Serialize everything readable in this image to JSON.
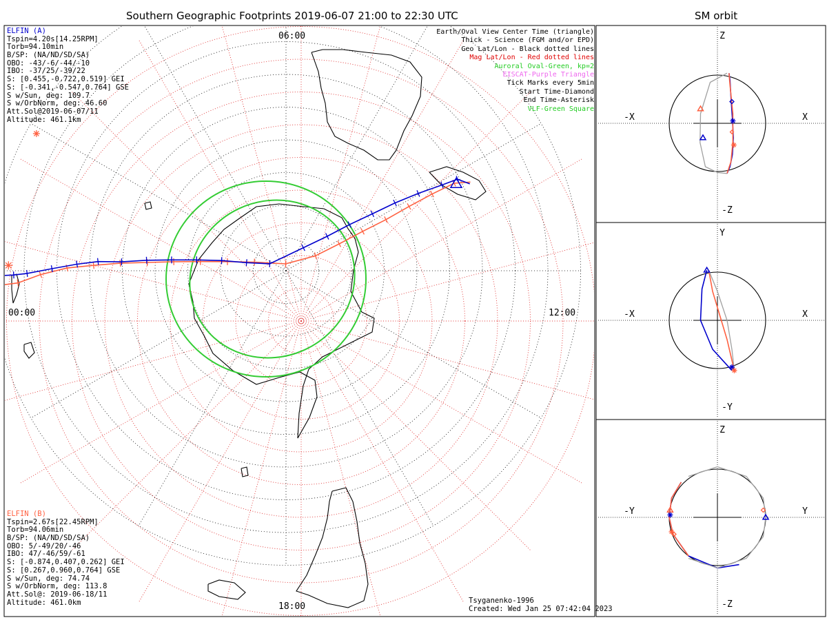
{
  "title": "Southern Geographic Footprints 2019-06-07 21:00 to 22:30 UTC",
  "orbit_title": "SM orbit",
  "elfin_a": {
    "name": "ELFIN (A)",
    "lines": [
      "Tspin=4.20s[14.25RPM]",
      "Torb=94.10min",
      "B/SP: (NA/ND/SD/SA)",
      "OBO: -43/-6/-44/-10",
      "IBO: -37/25/-39/22",
      "S: [0.455,-0.722,0.519] GEI",
      "S: [-0.341,-0.547,0.764] GSE",
      "S w/Sun, deg: 109.7",
      "S w/OrbNorm, deg: 46.60",
      "Att.Sol@2019-06-07/11",
      "Altitude: 461.1km"
    ]
  },
  "elfin_b": {
    "name": "ELFIN (B)",
    "lines": [
      "Tspin=2.67s[22.45RPM]",
      "Torb=94.06min",
      "B/SP: (NA/ND/SD/SA)",
      "OBO: 5/-49/20/-46",
      "IBO: 47/-46/59/-61",
      "S: [-0.874,0.407,0.262] GEI",
      "S: [0.267,0.960,0.764] GSE",
      "S w/Sun, deg: 74.74",
      "S w/OrbNorm, deg: 113.8",
      "Att.Sol@: 2019-06-18/11",
      "Altitude: 461.0km"
    ]
  },
  "legend": [
    {
      "text": "Earth/Oval View Center Time (triangle)",
      "color": "#000000"
    },
    {
      "text": "Thick - Science (FGM and/or EPD)",
      "color": "#000000"
    },
    {
      "text": "Geo Lat/Lon - Black dotted lines",
      "color": "#000000"
    },
    {
      "text": "Mag Lat/Lon - Red dotted lines",
      "color": "#e00000"
    },
    {
      "text": "Auroral Oval-Green, kp=2",
      "color": "#22cc22"
    },
    {
      "text": "EISCAT-Purple Triangle",
      "color": "#ee66ee"
    },
    {
      "text": "Tick Marks every 5min",
      "color": "#000000"
    },
    {
      "text": "Start Time-Diamond",
      "color": "#000000"
    },
    {
      "text": "End Time-Asterisk",
      "color": "#000000"
    },
    {
      "text": "VLF-Green Square",
      "color": "#22cc22"
    }
  ],
  "mlt_labels": {
    "top": "06:00",
    "left": "00:00",
    "right": "12:00",
    "bottom": "18:00"
  },
  "credit": "Tsyganenko-1996",
  "created": "Created: Wed Jan 25 07:42:04 2023",
  "colors": {
    "elfin_a": "#0000cc",
    "elfin_b": "#ff6040",
    "oval": "#33cc33",
    "grid_mag": "#e03030",
    "grid_geo": "#000000",
    "orbit_ref": "#a0a0a0"
  },
  "chart_data": [
    {
      "type": "line",
      "name": "footprints",
      "title": "Southern Geographic Footprints 2019-06-07 21:00 to 22:30 UTC",
      "projection": "south polar azimuthal",
      "series": [
        {
          "name": "ELFIN (A)",
          "color": "#0000cc",
          "lat": [
            -2.7,
            -6.8,
            -10.9,
            -18.5,
            -26.1,
            -32.5,
            -39.7,
            -47.3,
            -54.9,
            -62.5,
            -70.1,
            -77.7,
            -84.6,
            -81.2,
            -73.6,
            -66.0,
            -58.4,
            -50.8,
            -43.2,
            -35.6,
            -30.6,
            -27.9
          ],
          "lon": [
            -91.0,
            -90.9,
            -90.6,
            -89.5,
            -88.2,
            -87.2,
            -86.9,
            -85.7,
            -84.6,
            -83.1,
            -81.0,
            -78.4,
            -66.8,
            37.0,
            50.1,
            54.0,
            56.6,
            58.1,
            59.7,
            61.2,
            61.9,
            64.7
          ]
        },
        {
          "name": "ELFIN (B)",
          "color": "#ff6040",
          "lat": [
            -2.7,
            -8.0,
            -15.0,
            -23.1,
            -31.2,
            -39.3,
            -47.5,
            -55.6,
            -63.7,
            -71.9,
            -80.0,
            -87.9,
            -79.9,
            -71.8,
            -63.7,
            -55.7,
            -47.6,
            -39.6,
            -32.1,
            -27.5
          ],
          "lon": [
            -92.9,
            -92.6,
            -90.9,
            -89.3,
            -88.4,
            -87.4,
            -86.6,
            -85.4,
            -83.9,
            -81.2,
            -74.8,
            -3.0,
            63.1,
            63.2,
            62.8,
            62.9,
            62.4,
            62.3,
            62.5,
            64.3
          ]
        }
      ],
      "markers": {
        "elfin_a": {
          "view_center_triangle": [
            -31.6,
            62.9
          ],
          "start_diamond": [
            -2.7,
            -91.0
          ],
          "end_asterisk": [
            -27.9,
            64.7
          ]
        },
        "elfin_b": {
          "start_diamond": [
            -2.7,
            -92.9
          ],
          "end_asterisk": [
            -5.2,
            -88.9
          ],
          "extra_asterisk": [
            -3.0,
            -61.2
          ]
        }
      },
      "auroral_oval_kp": 2,
      "mlt_labels": [
        "06:00",
        "12:00",
        "18:00",
        "00:00"
      ]
    },
    {
      "type": "line",
      "name": "sm_orbit_xz",
      "title": "SM orbit",
      "xlabel": "X",
      "ylabel": "Z",
      "xlim": [
        -1.5,
        1.5
      ],
      "ylim": [
        -1.5,
        1.5
      ],
      "earth_radius": 1.0,
      "series": [
        {
          "name": "ELFIN (A)",
          "color": "#0000cc",
          "x": [
            0.24,
            0.26,
            0.28,
            0.31,
            0.33,
            0.31,
            0.26,
            0.2
          ],
          "y": [
            1.04,
            0.9,
            0.55,
            0.1,
            -0.3,
            -0.65,
            -0.9,
            -1.04
          ]
        },
        {
          "name": "ELFIN (B)",
          "color": "#ff6040",
          "x": [
            0.24,
            0.26,
            0.32,
            0.32,
            0.28,
            0.2
          ],
          "y": [
            1.04,
            0.8,
            0.2,
            -0.4,
            -0.8,
            -1.04
          ]
        },
        {
          "name": "orbit track",
          "color": "#a0a0a0",
          "x": [
            0.2,
            -0.15,
            -0.35,
            -0.36,
            -0.25,
            0.0,
            0.2
          ],
          "y": [
            1.04,
            0.85,
            0.2,
            -0.4,
            -0.9,
            -1.02,
            -1.04
          ]
        }
      ],
      "markers": {
        "triangles": [
          [
            -0.35,
            0.3
          ],
          [
            -0.3,
            -0.3
          ]
        ],
        "diamond": [
          0.3,
          0.45
        ],
        "asterisks": [
          [
            0.32,
            0.05
          ],
          [
            0.34,
            -0.45
          ]
        ],
        "small_diamond": [
          0.3,
          -0.18
        ]
      }
    },
    {
      "type": "line",
      "name": "sm_orbit_xy",
      "title": "SM orbit",
      "xlabel": "X",
      "ylabel": "Y",
      "xlim": [
        -1.5,
        1.5
      ],
      "ylim": [
        -1.5,
        1.5
      ],
      "earth_radius": 1.0,
      "series": [
        {
          "name": "ELFIN (A)",
          "color": "#0000cc",
          "x": [
            -0.22,
            -0.32,
            -0.35,
            -0.1,
            0.3
          ],
          "y": [
            1.04,
            0.65,
            0.0,
            -0.6,
            -1.04
          ]
        },
        {
          "name": "ELFIN (B)",
          "color": "#ff6040",
          "x": [
            -0.18,
            -0.1,
            0.2,
            0.35
          ],
          "y": [
            1.04,
            0.6,
            -0.4,
            -1.04
          ]
        },
        {
          "name": "orbit track",
          "color": "#a0a0a0",
          "x": [
            -0.18,
            0.0,
            0.2,
            0.3,
            0.35
          ],
          "y": [
            1.04,
            0.6,
            0.0,
            -0.6,
            -1.04
          ]
        }
      ],
      "markers": {
        "triangle": [
          -0.22,
          1.04
        ],
        "asterisks": [
          [
            0.3,
            -0.97
          ],
          [
            0.35,
            -1.04
          ]
        ]
      }
    },
    {
      "type": "line",
      "name": "sm_orbit_yz",
      "title": "SM orbit",
      "xlabel": "Y",
      "ylabel": "Z",
      "xlim": [
        -1.5,
        1.5
      ],
      "ylim": [
        -1.5,
        1.5
      ],
      "earth_radius": 1.0,
      "series": [
        {
          "name": "ELFIN (A)",
          "color": "#0000cc",
          "x": [
            -0.75,
            -0.95,
            -1.0,
            -0.92,
            -0.6,
            0.0,
            0.45
          ],
          "y": [
            0.73,
            0.4,
            0.0,
            -0.35,
            -0.8,
            -1.05,
            -0.98
          ]
        },
        {
          "name": "ELFIN (B)",
          "color": "#ff6040",
          "x": [
            -0.75,
            -0.95,
            -1.0,
            -0.92,
            -0.6
          ],
          "y": [
            0.73,
            0.4,
            0.0,
            -0.35,
            -0.8
          ]
        },
        {
          "name": "orbit track",
          "color": "#a0a0a0",
          "x": [
            -0.6,
            0.0,
            0.6,
            0.95,
            1.0,
            0.95,
            0.6,
            0.0,
            -0.6
          ],
          "y": [
            0.85,
            1.05,
            0.85,
            0.4,
            0.0,
            -0.4,
            -0.85,
            -1.05,
            -0.85
          ]
        }
      ],
      "markers": {
        "triangles": [
          [
            -0.98,
            0.15
          ],
          [
            1.0,
            0.0
          ]
        ],
        "asterisks": [
          [
            -0.98,
            0.05
          ],
          [
            -0.95,
            -0.3
          ]
        ],
        "diamonds": [
          [
            0.95,
            0.15
          ],
          [
            -0.9,
            -0.35
          ]
        ]
      }
    }
  ],
  "axis_labels": {
    "p1": {
      "top": "Z",
      "bottom": "-Z",
      "left": "-X",
      "right": "X"
    },
    "p2": {
      "top": "Y",
      "bottom": "-Y",
      "left": "-X",
      "right": "X"
    },
    "p3": {
      "top": "Z",
      "bottom": "-Z",
      "left": "-Y",
      "right": "Y"
    }
  }
}
